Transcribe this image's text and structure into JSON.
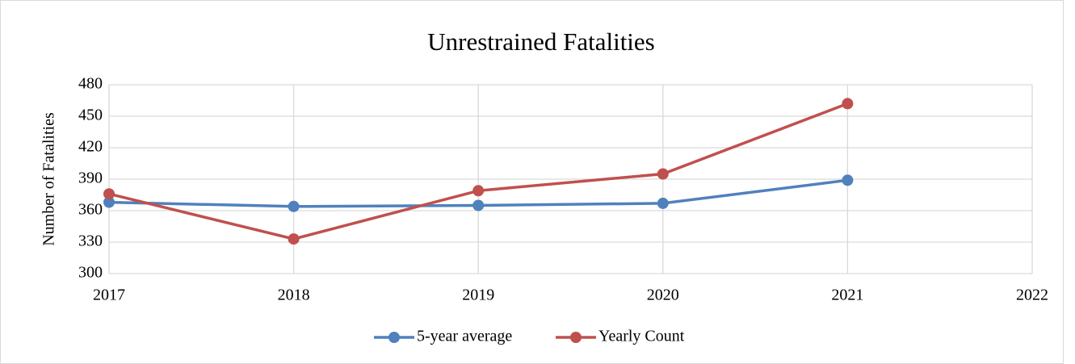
{
  "chart_data": {
    "type": "line",
    "title": "Unrestrained Fatalities",
    "y_label": "Number of Fatalities",
    "x": [
      2017,
      2018,
      2019,
      2020,
      2021
    ],
    "series": [
      {
        "name": "5-year average",
        "color": "#4f81bd",
        "values": [
          368,
          364,
          365,
          367,
          389
        ]
      },
      {
        "name": "Yearly Count",
        "color": "#c0504d",
        "values": [
          376,
          333,
          379,
          395,
          462
        ]
      }
    ],
    "xlim": [
      2017,
      2022
    ],
    "xticks": [
      2017,
      2018,
      2019,
      2020,
      2021,
      2022
    ],
    "ylim": [
      300,
      480
    ],
    "yticks": [
      300,
      330,
      360,
      390,
      420,
      450,
      480
    ],
    "grid": true,
    "legend": "bottom"
  }
}
